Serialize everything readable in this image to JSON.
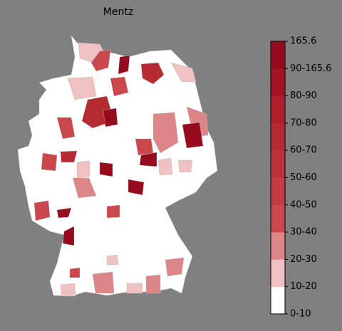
{
  "title": "Mentz",
  "legend": {
    "labels": [
      "0-10",
      "10-20",
      "20-30",
      "30-40",
      "40-50",
      "50-60",
      "60-70",
      "70-80",
      "80-90",
      "90-165.6",
      "165.6"
    ],
    "colors": [
      "#ffffff",
      "#efc1c1",
      "#dc8687",
      "#ca474b",
      "#c43c42",
      "#bd3239",
      "#b62a32",
      "#ad1f2a",
      "#a31525",
      "#960b1d"
    ]
  }
}
